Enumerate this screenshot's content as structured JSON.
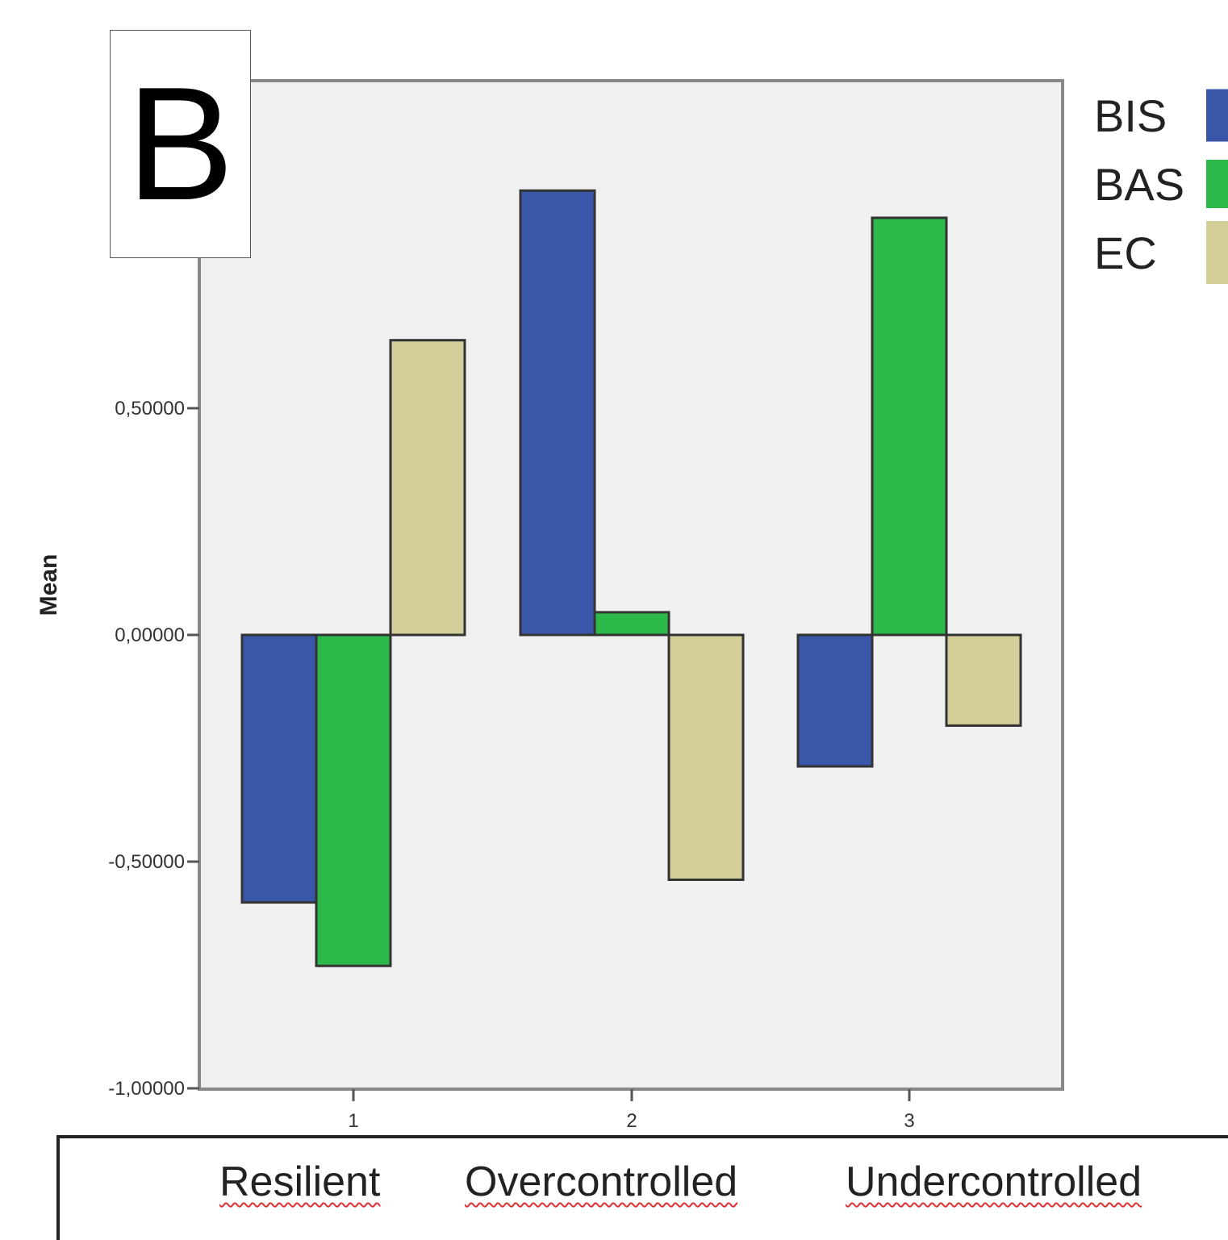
{
  "panel_label": "B",
  "group_names": [
    "Resilient",
    "Overcontrolled",
    "Undercontrolled"
  ],
  "colors": {
    "BIS": "#3a56a8",
    "BAS": "#2db84a",
    "EC": "#d4cf98",
    "plot_bg": "#f0f0f0"
  },
  "chart_data": {
    "type": "bar",
    "categories": [
      "1",
      "2",
      "3"
    ],
    "series": [
      {
        "name": "BIS",
        "values": [
          -0.59,
          0.98,
          -0.29
        ]
      },
      {
        "name": "BAS",
        "values": [
          -0.73,
          0.05,
          0.92
        ]
      },
      {
        "name": "EC",
        "values": [
          0.65,
          -0.54,
          -0.2
        ]
      }
    ],
    "ylabel": "Mean",
    "yticks": [
      "1",
      "0,50000",
      "0,00000",
      "-0,50000",
      "-1,00000"
    ],
    "ytick_values": [
      1,
      0.5,
      0,
      -0.5,
      -1
    ],
    "ylim": [
      -1,
      1.2
    ],
    "grid": false,
    "legend": {
      "entries": [
        "BIS",
        "BAS",
        "EC"
      ],
      "position": "right"
    }
  }
}
